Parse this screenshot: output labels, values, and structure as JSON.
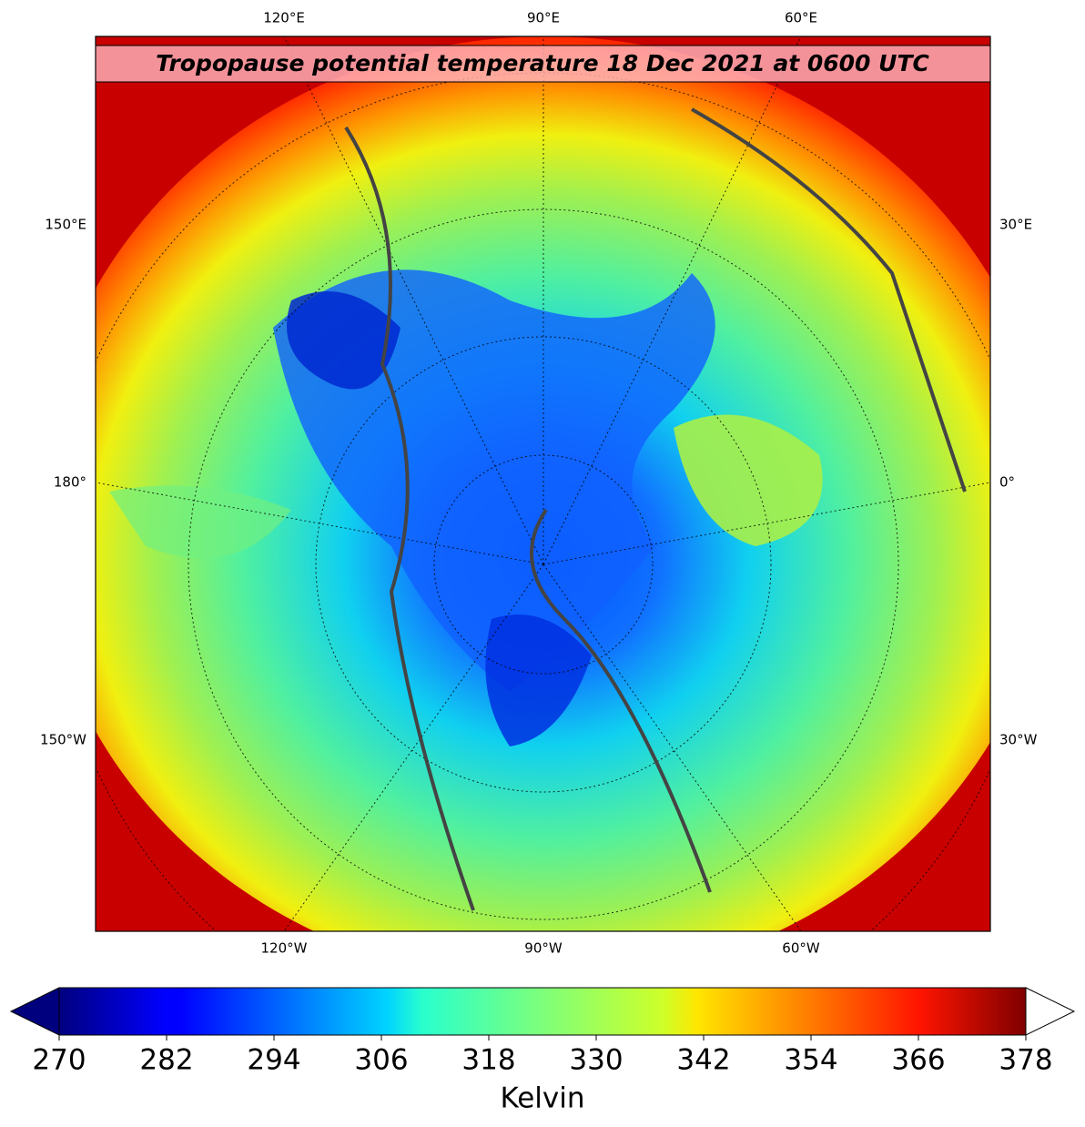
{
  "map": {
    "title": "Tropopause potential temperature 18 Dec 2021 at 0600 UTC",
    "labels": {
      "top": [
        "120°E",
        "90°E",
        "60°E"
      ],
      "left": [
        "150°E",
        "180°",
        "150°W"
      ],
      "right": [
        "30°E",
        "0°",
        "30°W"
      ],
      "bottom": [
        "120°W",
        "90°W",
        "60°W"
      ]
    }
  },
  "colorbar": {
    "colormap": "jet",
    "ticks": [
      270,
      282,
      294,
      306,
      318,
      330,
      342,
      354,
      366,
      378
    ],
    "label": "Kelvin"
  }
}
